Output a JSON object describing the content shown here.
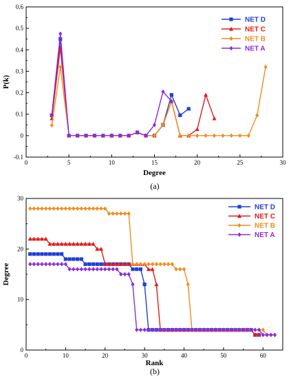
{
  "chart_data": [
    {
      "type": "line",
      "panel_label": "(a)",
      "xlabel": "Degree",
      "ylabel": "P(k)",
      "xlim": [
        0,
        30
      ],
      "ylim": [
        -0.1,
        0.6
      ],
      "xticks": [
        0,
        5,
        10,
        15,
        20,
        25,
        30
      ],
      "yticks": [
        -0.1,
        0.0,
        0.1,
        0.2,
        0.3,
        0.4,
        0.5,
        0.6
      ],
      "legend_position": "top-right",
      "series": [
        {
          "name": "NET D",
          "color": "#1f3fd6",
          "marker": "square",
          "x": [
            3,
            4,
            5,
            6,
            7,
            8,
            9,
            10,
            11,
            12,
            13,
            14,
            15,
            16,
            17,
            18,
            19
          ],
          "y": [
            0.095,
            0.45,
            0.0,
            0.0,
            0.0,
            0.0,
            0.0,
            0.0,
            0.0,
            0.0,
            0.015,
            0.0,
            0.0,
            0.05,
            0.19,
            0.095,
            0.125
          ]
        },
        {
          "name": "NET C",
          "color": "#e01b1b",
          "marker": "triangle",
          "x": [
            3,
            4,
            5,
            6,
            7,
            8,
            9,
            10,
            11,
            12,
            13,
            14,
            15,
            16,
            17,
            18,
            19,
            20,
            21,
            22
          ],
          "y": [
            0.08,
            0.41,
            0.0,
            0.0,
            0.0,
            0.0,
            0.0,
            0.0,
            0.0,
            0.0,
            0.015,
            0.0,
            0.0,
            0.05,
            0.16,
            0.0,
            0.0,
            0.03,
            0.19,
            0.08
          ]
        },
        {
          "name": "NET B",
          "color": "#f08c1a",
          "marker": "diamond",
          "x": [
            3,
            4,
            5,
            6,
            7,
            8,
            9,
            10,
            11,
            12,
            13,
            14,
            15,
            16,
            17,
            18,
            19,
            20,
            21,
            22,
            23,
            24,
            25,
            26,
            27,
            28
          ],
          "y": [
            0.048,
            0.32,
            0.0,
            0.0,
            0.0,
            0.0,
            0.0,
            0.0,
            0.0,
            0.0,
            0.015,
            0.0,
            0.0,
            0.05,
            0.16,
            0.0,
            0.0,
            0.0,
            0.0,
            0.0,
            0.0,
            0.0,
            0.0,
            0.0,
            0.095,
            0.32
          ]
        },
        {
          "name": "NET A",
          "color": "#8a2be2",
          "marker": "diamond",
          "x": [
            3,
            4,
            5,
            6,
            7,
            8,
            9,
            10,
            11,
            12,
            13,
            14,
            15,
            16,
            17
          ],
          "y": [
            0.095,
            0.475,
            0.0,
            0.0,
            0.0,
            0.0,
            0.0,
            0.0,
            0.0,
            0.0,
            0.015,
            0.0,
            0.05,
            0.205,
            0.16
          ]
        }
      ]
    },
    {
      "type": "line",
      "panel_label": "(b)",
      "xlabel": "Rank",
      "ylabel": "Degree",
      "xlim": [
        0,
        65
      ],
      "ylim": [
        0,
        30
      ],
      "xticks": [
        0,
        10,
        20,
        30,
        40,
        50,
        60
      ],
      "yticks": [
        0,
        10,
        20,
        30
      ],
      "legend_position": "top-right",
      "series": [
        {
          "name": "NET D",
          "color": "#1f3fd6",
          "marker": "square",
          "x": [
            1,
            2,
            3,
            4,
            5,
            6,
            7,
            8,
            9,
            10,
            11,
            12,
            13,
            14,
            15,
            16,
            17,
            18,
            19,
            20,
            21,
            22,
            23,
            24,
            25,
            26,
            27,
            28,
            29,
            30,
            31,
            32,
            33,
            34,
            35,
            36,
            37,
            38,
            39,
            40,
            41,
            42,
            43,
            44,
            45,
            46,
            47,
            48,
            49,
            50,
            51,
            52,
            53,
            54,
            55,
            56,
            57,
            58,
            59
          ],
          "y": [
            19,
            19,
            19,
            19,
            19,
            19,
            19,
            19,
            19,
            18,
            18,
            18,
            18,
            18,
            17,
            17,
            17,
            17,
            17,
            17,
            17,
            17,
            17,
            17,
            17,
            17,
            16,
            16,
            16,
            13,
            4,
            4,
            4,
            4,
            4,
            4,
            4,
            4,
            4,
            4,
            4,
            4,
            4,
            4,
            4,
            4,
            4,
            4,
            4,
            4,
            4,
            4,
            4,
            4,
            4,
            4,
            4,
            3,
            3
          ]
        },
        {
          "name": "NET C",
          "color": "#e01b1b",
          "marker": "triangle",
          "x": [
            1,
            2,
            3,
            4,
            5,
            6,
            7,
            8,
            9,
            10,
            11,
            12,
            13,
            14,
            15,
            16,
            17,
            18,
            19,
            20,
            21,
            22,
            23,
            24,
            25,
            26,
            27,
            28,
            29,
            30,
            31,
            32,
            33,
            34,
            35,
            36,
            37,
            38,
            39,
            40,
            41,
            42,
            43,
            44,
            45,
            46,
            47,
            48,
            49,
            50,
            51,
            52,
            53,
            54,
            55,
            56,
            57,
            58,
            59
          ],
          "y": [
            22,
            22,
            22,
            22,
            22,
            21,
            21,
            21,
            21,
            21,
            21,
            21,
            21,
            21,
            21,
            21,
            21,
            20,
            20,
            17,
            17,
            17,
            17,
            17,
            17,
            17,
            17,
            17,
            17,
            17,
            16,
            16,
            13,
            4,
            4,
            4,
            4,
            4,
            4,
            4,
            4,
            4,
            4,
            4,
            4,
            4,
            4,
            4,
            4,
            4,
            4,
            4,
            4,
            4,
            4,
            4,
            4,
            3,
            3
          ]
        },
        {
          "name": "NET B",
          "color": "#f08c1a",
          "marker": "diamond",
          "x": [
            1,
            2,
            3,
            4,
            5,
            6,
            7,
            8,
            9,
            10,
            11,
            12,
            13,
            14,
            15,
            16,
            17,
            18,
            19,
            20,
            21,
            22,
            23,
            24,
            25,
            26,
            27,
            28,
            29,
            30,
            31,
            32,
            33,
            34,
            35,
            36,
            37,
            38,
            39,
            40,
            41,
            42,
            43,
            44,
            45,
            46,
            47,
            48,
            49,
            50,
            51,
            52,
            53,
            54,
            55,
            56,
            57,
            58,
            59,
            60,
            61,
            62,
            63
          ],
          "y": [
            28,
            28,
            28,
            28,
            28,
            28,
            28,
            28,
            28,
            28,
            28,
            28,
            28,
            28,
            28,
            28,
            28,
            28,
            28,
            28,
            27,
            27,
            27,
            27,
            27,
            27,
            17,
            17,
            17,
            17,
            17,
            17,
            17,
            17,
            17,
            17,
            17,
            16,
            16,
            16,
            13,
            4,
            4,
            4,
            4,
            4,
            4,
            4,
            4,
            4,
            4,
            4,
            4,
            4,
            4,
            4,
            4,
            4,
            4,
            4,
            3,
            3,
            3
          ]
        },
        {
          "name": "NET A",
          "color": "#8a2be2",
          "marker": "diamond",
          "x": [
            1,
            2,
            3,
            4,
            5,
            6,
            7,
            8,
            9,
            10,
            11,
            12,
            13,
            14,
            15,
            16,
            17,
            18,
            19,
            20,
            21,
            22,
            23,
            24,
            25,
            26,
            27,
            28,
            29,
            30,
            31,
            32,
            33,
            34,
            35,
            36,
            37,
            38,
            39,
            40,
            41,
            42,
            43,
            44,
            45,
            46,
            47,
            48,
            49,
            50,
            51,
            52,
            53,
            54,
            55,
            56,
            57,
            58,
            59,
            60,
            61,
            62,
            63
          ],
          "y": [
            17,
            17,
            17,
            17,
            17,
            17,
            17,
            17,
            17,
            17,
            16,
            16,
            16,
            16,
            16,
            16,
            16,
            16,
            16,
            16,
            16,
            16,
            16,
            15,
            15,
            15,
            13,
            4,
            4,
            4,
            4,
            4,
            4,
            4,
            4,
            4,
            4,
            4,
            4,
            4,
            4,
            4,
            4,
            4,
            4,
            4,
            4,
            4,
            4,
            4,
            4,
            4,
            4,
            4,
            4,
            4,
            4,
            4,
            4,
            3,
            3,
            3,
            3
          ]
        }
      ]
    }
  ]
}
